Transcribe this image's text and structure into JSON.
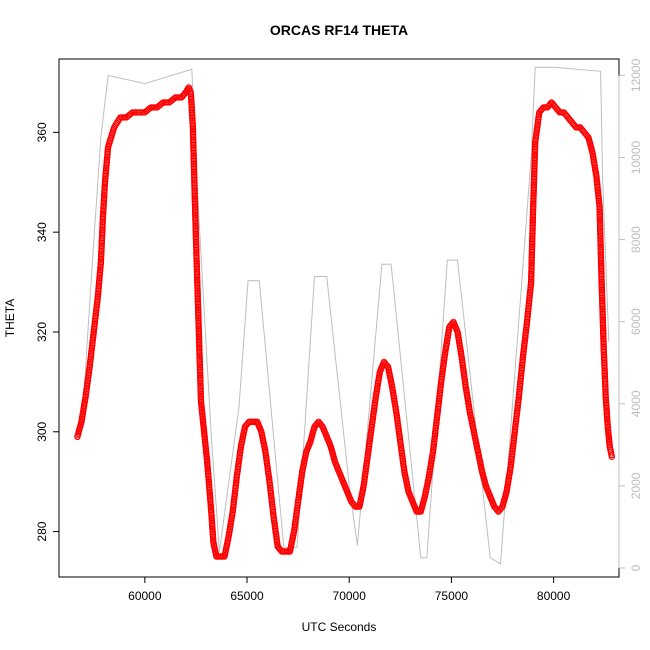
{
  "chart_data": {
    "type": "scatter",
    "title": "ORCAS RF14 THETA",
    "xlabel": "UTC Seconds",
    "ylabel": "THETA",
    "xlim": [
      55800,
      83200
    ],
    "ylim": [
      270.9,
      374.7
    ],
    "x_ticks": [
      60000,
      65000,
      70000,
      75000,
      80000
    ],
    "x_tick_labels": [
      "60000",
      "65000",
      "70000",
      "75000",
      "80000"
    ],
    "y_ticks": [
      280,
      300,
      320,
      340,
      360
    ],
    "y_tick_labels": [
      "280",
      "300",
      "320",
      "340",
      "360"
    ],
    "y2lim": [
      -220,
      12400
    ],
    "y2_ticks": [
      0,
      2000,
      4000,
      6000,
      8000,
      10000,
      12000
    ],
    "y2_tick_labels": [
      "0",
      "2000",
      "4000",
      "6000",
      "8000",
      "10000",
      "12000"
    ],
    "grid": false,
    "colors": {
      "theta": "#ff0000",
      "altitude": "#bebebe",
      "axis": "#000000"
    },
    "series": [
      {
        "axis": "left",
        "style": "points",
        "x": [
          56700,
          56900,
          57100,
          57300,
          57500,
          57700,
          57850,
          57950,
          58050,
          58200,
          58500,
          58800,
          59100,
          59400,
          59700,
          60000,
          60300,
          60600,
          60900,
          61200,
          61500,
          61800,
          62000,
          62150,
          62250,
          62350,
          62450,
          62550,
          62650,
          62750,
          62850,
          62950,
          63050,
          63150,
          63250,
          63350,
          63500,
          63700,
          63900,
          64100,
          64300,
          64500,
          64700,
          64900,
          65100,
          65300,
          65500,
          65700,
          65900,
          66100,
          66300,
          66500,
          66700,
          66900,
          67100,
          67300,
          67500,
          67700,
          67900,
          68100,
          68300,
          68500,
          68700,
          68900,
          69100,
          69300,
          69500,
          69700,
          69900,
          70100,
          70300,
          70500,
          70700,
          70900,
          71100,
          71300,
          71500,
          71700,
          71900,
          72100,
          72300,
          72500,
          72700,
          72900,
          73100,
          73300,
          73500,
          73700,
          73900,
          74100,
          74300,
          74500,
          74700,
          74900,
          75100,
          75300,
          75500,
          75700,
          75900,
          76100,
          76300,
          76500,
          76700,
          76900,
          77100,
          77300,
          77500,
          77700,
          77900,
          78100,
          78300,
          78500,
          78700,
          78900,
          79000,
          79100,
          79300,
          79500,
          79700,
          79900,
          80100,
          80300,
          80500,
          80700,
          80900,
          81100,
          81300,
          81500,
          81700,
          81900,
          82100,
          82250,
          82350,
          82450,
          82550,
          82650,
          82750,
          82850
        ],
        "y": [
          299,
          302,
          307,
          313,
          320,
          327,
          334,
          343,
          350,
          357,
          361,
          363,
          363,
          364,
          364,
          364,
          365,
          365,
          366,
          366,
          367,
          367,
          368,
          369,
          368,
          361,
          346,
          332,
          319,
          306,
          302,
          298,
          294,
          289,
          284,
          278,
          275,
          275,
          275,
          279,
          284,
          291,
          297,
          301,
          302,
          302,
          302,
          300,
          296,
          290,
          283,
          277,
          276,
          276,
          276,
          280,
          286,
          292,
          296,
          298,
          301,
          302,
          301,
          299,
          297,
          294,
          292,
          290,
          288,
          286,
          285,
          285,
          289,
          295,
          301,
          307,
          312,
          314,
          313,
          309,
          304,
          298,
          292,
          288,
          286,
          284,
          284,
          287,
          291,
          296,
          303,
          310,
          316,
          321,
          322,
          320,
          315,
          309,
          304,
          300,
          296,
          292,
          289,
          287,
          285,
          284,
          285,
          288,
          293,
          300,
          307,
          315,
          322,
          330,
          345,
          358,
          364,
          365,
          365,
          366,
          365,
          364,
          364,
          363,
          362,
          361,
          361,
          360,
          359,
          356,
          351,
          345,
          330,
          317,
          307,
          301,
          297,
          295
        ]
      },
      {
        "axis": "right",
        "style": "line",
        "x": [
          56900,
          57400,
          57850,
          58200,
          60000,
          62300,
          62650,
          63250,
          63650,
          64600,
          65050,
          65600,
          66800,
          67450,
          68300,
          68900,
          70050,
          70400,
          71600,
          72050,
          73500,
          73800,
          74800,
          75300,
          76900,
          77400,
          78900,
          79100,
          80000,
          82300,
          82400,
          82700
        ],
        "y": [
          3300,
          7200,
          10500,
          12000,
          11800,
          12150,
          8500,
          3200,
          400,
          3900,
          7000,
          7000,
          500,
          500,
          7100,
          7100,
          1800,
          550,
          7400,
          7400,
          250,
          250,
          7500,
          7500,
          250,
          100,
          10000,
          12200,
          12200,
          12100,
          9500,
          5500
        ]
      }
    ]
  }
}
